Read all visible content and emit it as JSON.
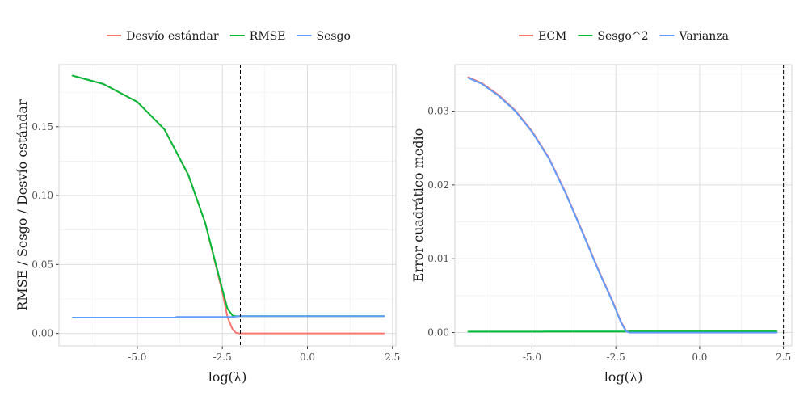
{
  "chart_data": [
    {
      "type": "line",
      "xlabel": "log(λ)",
      "ylabel": "RMSE / Sesgo / Desvío estándar",
      "xlim": [
        -7.3,
        2.6
      ],
      "ylim": [
        -0.009,
        0.195
      ],
      "xticks": [
        -5.0,
        -2.5,
        0.0,
        2.5
      ],
      "xtick_labels": [
        "-5.0",
        "-2.5",
        "0.0",
        "2.5"
      ],
      "yticks": [
        0.0,
        0.05,
        0.1,
        0.15
      ],
      "ytick_labels": [
        "0.00",
        "0.05",
        "0.10",
        "0.15"
      ],
      "vline": -1.97,
      "grid": true,
      "legend_position": "top",
      "series": [
        {
          "name": "Desvío estándar",
          "color": "#F8766D",
          "x": [
            -6.9,
            -6.0,
            -5.0,
            -4.2,
            -3.5,
            -3.0,
            -2.7,
            -2.5,
            -2.35,
            -2.2,
            -2.1,
            -2.0,
            -1.5,
            0.0,
            1.0,
            2.25
          ],
          "y": [
            0.187,
            0.181,
            0.168,
            0.148,
            0.115,
            0.08,
            0.05,
            0.03,
            0.012,
            0.003,
            0.0005,
            0.0,
            0.0,
            0.0,
            0.0,
            0.0
          ]
        },
        {
          "name": "RMSE",
          "color": "#00BA38",
          "x": [
            -6.9,
            -6.0,
            -5.0,
            -4.2,
            -3.5,
            -3.0,
            -2.7,
            -2.5,
            -2.35,
            -2.2,
            -2.1,
            -2.0,
            -1.5,
            0.0,
            1.0,
            2.25
          ],
          "y": [
            0.187,
            0.181,
            0.168,
            0.148,
            0.115,
            0.08,
            0.051,
            0.032,
            0.018,
            0.013,
            0.0125,
            0.0125,
            0.0125,
            0.0125,
            0.0125,
            0.0125
          ]
        },
        {
          "name": "Sesgo",
          "color": "#619CFF",
          "x": [
            -6.9,
            -3.9,
            -3.85,
            -2.2,
            -2.0,
            2.25
          ],
          "y": [
            0.0115,
            0.0115,
            0.012,
            0.012,
            0.0125,
            0.0125
          ]
        }
      ]
    },
    {
      "type": "line",
      "xlabel": "log(λ)",
      "ylabel": "Error cuadrático medio",
      "xlim": [
        -7.3,
        2.75
      ],
      "ylim": [
        -0.0018,
        0.0363
      ],
      "xticks": [
        -5.0,
        -2.5,
        0.0,
        2.5
      ],
      "xtick_labels": [
        "-5.0",
        "-2.5",
        "0.0",
        "2.5"
      ],
      "yticks": [
        0.0,
        0.01,
        0.02,
        0.03
      ],
      "ytick_labels": [
        "0.00",
        "0.01",
        "0.02",
        "0.03"
      ],
      "vline": 2.5,
      "grid": true,
      "legend_position": "top",
      "series": [
        {
          "name": "ECM",
          "color": "#F8766D",
          "x": [
            -6.9,
            -6.5,
            -6.0,
            -5.5,
            -5.0,
            -4.5,
            -4.0,
            -3.5,
            -3.0,
            -2.6,
            -2.35,
            -2.2,
            -2.0,
            -1.0,
            0.0,
            2.3
          ],
          "y": [
            0.0346,
            0.0338,
            0.0322,
            0.0301,
            0.0273,
            0.0237,
            0.019,
            0.0137,
            0.0083,
            0.0043,
            0.0015,
            0.0003,
            0.00015,
            0.00015,
            0.00015,
            0.00015
          ]
        },
        {
          "name": "Sesgo^2",
          "color": "#00BA38",
          "x": [
            -6.9,
            -4.7,
            -4.6,
            -2.2,
            -2.0,
            2.3
          ],
          "y": [
            0.00013,
            0.00013,
            0.00015,
            0.00015,
            0.00016,
            0.00016
          ]
        },
        {
          "name": "Varianza",
          "color": "#619CFF",
          "x": [
            -6.9,
            -6.5,
            -6.0,
            -5.5,
            -5.0,
            -4.5,
            -4.0,
            -3.5,
            -3.0,
            -2.6,
            -2.35,
            -2.2,
            -2.1,
            -2.0,
            0.0,
            2.3
          ],
          "y": [
            0.0345,
            0.0337,
            0.0321,
            0.03,
            0.0272,
            0.0236,
            0.0189,
            0.0136,
            0.0082,
            0.0042,
            0.0014,
            0.0002,
            0.0,
            0.0,
            0.0,
            0.0
          ]
        }
      ]
    }
  ]
}
